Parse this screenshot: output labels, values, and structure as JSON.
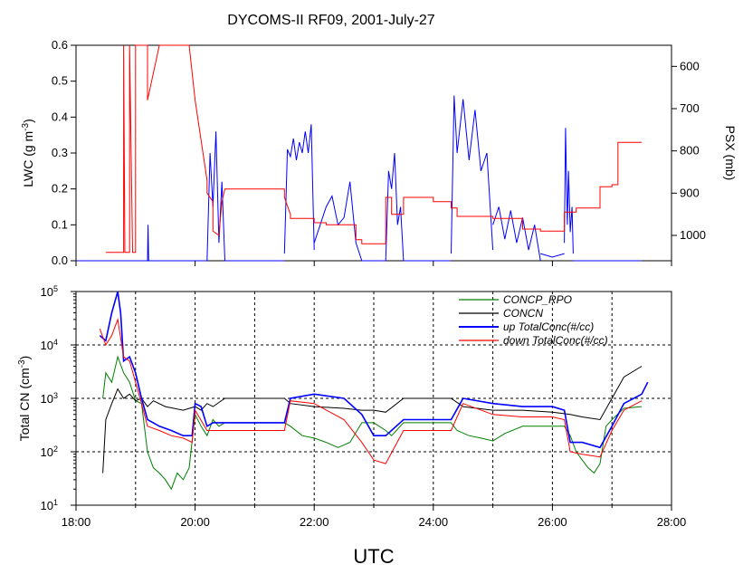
{
  "chart_data": [
    {
      "type": "line",
      "title": "DYCOMS-II RF09, 2001-July-27",
      "xlabel": "",
      "ylabel": "LWC (g m-3)",
      "ylabel_parts": [
        "LWC (g m",
        "-3",
        ")"
      ],
      "y2label": "PSX (mb)",
      "xlim": [
        18,
        28
      ],
      "ylim": [
        0,
        0.6
      ],
      "y_ticks": [
        "0.0",
        "0.1",
        "0.2",
        "0.3",
        "0.4",
        "0.5",
        "0.6"
      ],
      "y_tick_values": [
        0,
        0.1,
        0.2,
        0.3,
        0.4,
        0.5,
        0.6
      ],
      "y2lim": [
        1060,
        550
      ],
      "y2_reversed": true,
      "y2_ticks": [
        "600",
        "700",
        "800",
        "900",
        "1000"
      ],
      "y2_tick_values": [
        600,
        700,
        800,
        900,
        1000
      ],
      "grid": false,
      "series": [
        {
          "key": "lwc",
          "axis": "left",
          "color": "#0000ff",
          "segments": [
            {
              "x": [
                18.0,
                19.2
              ],
              "y": [
                0,
                0
              ]
            },
            {
              "x": [
                19.2,
                19.21,
                19.22
              ],
              "y": [
                0,
                0.1,
                0
              ]
            },
            {
              "x": [
                19.22,
                20.2
              ],
              "y": [
                0,
                0
              ]
            },
            {
              "x": [
                20.2,
                20.25,
                20.3,
                20.35,
                20.4,
                20.45,
                20.5
              ],
              "y": [
                0,
                0.3,
                0.15,
                0.36,
                0.05,
                0.22,
                0
              ]
            },
            {
              "x": [
                20.5,
                21.5
              ],
              "y": [
                0,
                0
              ]
            },
            {
              "x": [
                21.5,
                21.55,
                21.6,
                21.65,
                21.7,
                21.75,
                21.8,
                21.85,
                21.9,
                21.95,
                22.0
              ],
              "y": [
                0.02,
                0.31,
                0.29,
                0.34,
                0.28,
                0.33,
                0.3,
                0.36,
                0.3,
                0.38,
                0.03
              ]
            },
            {
              "x": [
                22.0,
                22.1,
                22.2,
                22.3,
                22.4,
                22.5,
                22.6,
                22.7,
                22.8
              ],
              "y": [
                0.05,
                0.1,
                0.15,
                0.18,
                0.1,
                0.12,
                0.22,
                0.05,
                0
              ]
            },
            {
              "x": [
                22.8,
                23.2
              ],
              "y": [
                0,
                0
              ]
            },
            {
              "x": [
                23.2,
                23.25,
                23.3,
                23.35,
                23.4,
                23.45,
                23.5
              ],
              "y": [
                0,
                0.25,
                0.2,
                0.3,
                0.1,
                0.15,
                0
              ]
            },
            {
              "x": [
                23.5,
                24.3
              ],
              "y": [
                0,
                0
              ]
            },
            {
              "x": [
                24.3,
                24.35,
                24.4,
                24.5,
                24.6,
                24.7,
                24.8,
                24.9,
                25.0
              ],
              "y": [
                0.02,
                0.46,
                0.3,
                0.45,
                0.28,
                0.42,
                0.25,
                0.3,
                0.03
              ]
            },
            {
              "x": [
                25.0,
                25.1,
                25.2,
                25.3,
                25.4,
                25.5,
                25.6,
                25.7,
                25.8
              ],
              "y": [
                0.1,
                0.15,
                0.06,
                0.14,
                0.05,
                0.12,
                0.03,
                0.1,
                0
              ]
            },
            {
              "x": [
                25.8,
                26.0,
                26.2
              ],
              "y": [
                0.02,
                0.01,
                0.02
              ]
            },
            {
              "x": [
                26.2,
                26.22,
                26.25,
                26.27,
                26.3,
                26.33,
                26.35
              ],
              "y": [
                0.05,
                0.37,
                0.1,
                0.25,
                0.08,
                0.15,
                0.02
              ]
            },
            {
              "x": [
                26.35,
                27.5
              ],
              "y": [
                0,
                0
              ]
            }
          ]
        },
        {
          "key": "psx",
          "axis": "right",
          "color": "#ff0000",
          "x": [
            18.5,
            18.8,
            18.8,
            18.82,
            18.9,
            18.9,
            18.95,
            19.0,
            19.0,
            19.2,
            19.2,
            19.4,
            19.9,
            20.0,
            20.2,
            20.2,
            20.3,
            20.3,
            20.4,
            20.45,
            20.5,
            21.5,
            21.5,
            21.6,
            21.6,
            22.0,
            22.0,
            22.2,
            22.2,
            22.7,
            22.7,
            22.8,
            22.8,
            23.2,
            23.2,
            23.3,
            23.3,
            23.5,
            23.5,
            24.0,
            24.0,
            24.3,
            24.3,
            24.4,
            24.4,
            25.0,
            25.0,
            25.5,
            25.5,
            25.8,
            25.8,
            26.2,
            26.2,
            26.4,
            26.4,
            26.8,
            26.8,
            27.0,
            27.0,
            27.1,
            27.1,
            27.5
          ],
          "y": [
            1040,
            1040,
            550,
            1040,
            1040,
            550,
            1040,
            1040,
            550,
            550,
            680,
            550,
            550,
            680,
            870,
            900,
            920,
            990,
            1000,
            920,
            890,
            890,
            910,
            950,
            960,
            960,
            970,
            970,
            975,
            975,
            1010,
            1010,
            1020,
            1020,
            910,
            910,
            950,
            950,
            910,
            910,
            920,
            920,
            935,
            935,
            955,
            955,
            960,
            960,
            985,
            985,
            990,
            990,
            945,
            945,
            935,
            935,
            885,
            885,
            880,
            880,
            780,
            780
          ]
        }
      ]
    },
    {
      "type": "line",
      "title": "",
      "xlabel": "UTC",
      "ylabel": "Total CN (cm-3)",
      "ylabel_parts": [
        "Total CN (cm",
        "-3",
        ")"
      ],
      "xlim": [
        18,
        28
      ],
      "x_ticks": [
        "18:00",
        "20:00",
        "22:00",
        "24:00",
        "26:00",
        "28:00"
      ],
      "x_tick_values": [
        18,
        20,
        22,
        24,
        26,
        28
      ],
      "y_scale": "log",
      "ylim": [
        10,
        100000
      ],
      "y_ticks": [
        {
          "base": "10",
          "exp": "1"
        },
        {
          "base": "10",
          "exp": "2"
        },
        {
          "base": "10",
          "exp": "3"
        },
        {
          "base": "10",
          "exp": "4"
        },
        {
          "base": "10",
          "exp": "5"
        }
      ],
      "y_tick_values": [
        10,
        100,
        1000,
        10000,
        100000
      ],
      "grid": true,
      "grid_style": "dashed",
      "legend_position": "top-right",
      "series": [
        {
          "name": "CONCP_RPO",
          "color": "#008000",
          "x": [
            18.45,
            18.5,
            18.6,
            18.7,
            18.8,
            18.9,
            19.0,
            19.1,
            19.2,
            19.3,
            19.4,
            19.5,
            19.6,
            19.7,
            19.8,
            19.9,
            20.0,
            20.1,
            20.2,
            20.3,
            20.4,
            20.5,
            21.0,
            21.5,
            21.6,
            21.8,
            22.0,
            22.2,
            22.4,
            22.6,
            22.8,
            23.0,
            23.2,
            23.3,
            23.5,
            24.0,
            24.3,
            24.4,
            24.6,
            24.8,
            25.0,
            25.2,
            25.5,
            25.8,
            26.0,
            26.2,
            26.3,
            26.4,
            26.5,
            26.6,
            26.7,
            26.8,
            26.9,
            27.0,
            27.2,
            27.5
          ],
          "y": [
            1000,
            3000,
            2000,
            6000,
            3000,
            2000,
            900,
            800,
            100,
            50,
            40,
            30,
            20,
            40,
            30,
            50,
            500,
            300,
            200,
            400,
            300,
            350,
            350,
            350,
            300,
            200,
            180,
            150,
            120,
            150,
            350,
            350,
            250,
            200,
            350,
            350,
            350,
            250,
            200,
            180,
            160,
            220,
            300,
            300,
            300,
            300,
            200,
            100,
            70,
            50,
            40,
            60,
            300,
            400,
            650,
            700
          ]
        },
        {
          "name": "CONCN",
          "color": "#000000",
          "x": [
            18.45,
            18.5,
            18.6,
            18.7,
            18.8,
            18.9,
            19.0,
            19.1,
            19.2,
            19.3,
            19.5,
            19.8,
            20.0,
            20.1,
            20.2,
            20.3,
            20.5,
            21.0,
            21.5,
            21.6,
            22.0,
            22.5,
            22.8,
            23.0,
            23.2,
            23.5,
            24.0,
            24.3,
            24.5,
            25.0,
            25.5,
            26.0,
            26.3,
            26.5,
            26.8,
            27.0,
            27.2,
            27.5
          ],
          "y": [
            40,
            400,
            800,
            1500,
            1000,
            1200,
            900,
            1000,
            700,
            900,
            700,
            600,
            700,
            600,
            800,
            700,
            1000,
            1000,
            1000,
            800,
            700,
            650,
            600,
            600,
            550,
            1000,
            1000,
            1000,
            700,
            600,
            600,
            550,
            500,
            450,
            400,
            1000,
            2500,
            4000
          ]
        },
        {
          "name": "up TotalConc(#/cc)",
          "color": "#0000ff",
          "x": [
            18.4,
            18.5,
            18.6,
            18.7,
            18.75,
            18.8,
            18.9,
            19.0,
            19.1,
            19.2,
            19.4,
            19.6,
            19.8,
            19.95,
            20.0,
            20.1,
            20.2,
            20.3,
            20.5,
            21.0,
            21.5,
            21.6,
            22.0,
            22.5,
            22.8,
            23.0,
            23.2,
            23.5,
            24.0,
            24.3,
            24.5,
            25.0,
            25.5,
            26.0,
            26.2,
            26.3,
            26.5,
            26.8,
            27.0,
            27.2,
            27.5,
            27.6
          ],
          "y": [
            15000,
            12000,
            40000,
            100000,
            40000,
            5000,
            6000,
            3000,
            1000,
            400,
            300,
            250,
            200,
            200,
            800,
            700,
            300,
            350,
            350,
            350,
            350,
            1000,
            1200,
            1000,
            500,
            200,
            200,
            400,
            400,
            400,
            1000,
            800,
            700,
            700,
            600,
            150,
            150,
            120,
            300,
            800,
            1200,
            2000
          ]
        },
        {
          "name": "down TotalConc(#/cc)",
          "color": "#ff0000",
          "x": [
            18.4,
            18.5,
            18.6,
            18.7,
            18.8,
            18.9,
            19.0,
            19.1,
            19.2,
            19.4,
            19.6,
            19.8,
            19.95,
            20.0,
            20.2,
            20.5,
            21.0,
            21.5,
            21.6,
            22.0,
            22.5,
            22.8,
            23.0,
            23.2,
            23.5,
            24.0,
            24.3,
            24.5,
            25.0,
            25.5,
            26.0,
            26.2,
            26.3,
            26.5,
            26.8,
            27.0,
            27.2,
            27.5
          ],
          "y": [
            20000,
            10000,
            15000,
            30000,
            6000,
            5000,
            2000,
            800,
            300,
            250,
            200,
            180,
            150,
            600,
            250,
            250,
            250,
            250,
            900,
            800,
            400,
            150,
            70,
            60,
            250,
            250,
            250,
            800,
            500,
            450,
            450,
            400,
            100,
            90,
            80,
            250,
            600,
            900
          ]
        }
      ]
    }
  ]
}
